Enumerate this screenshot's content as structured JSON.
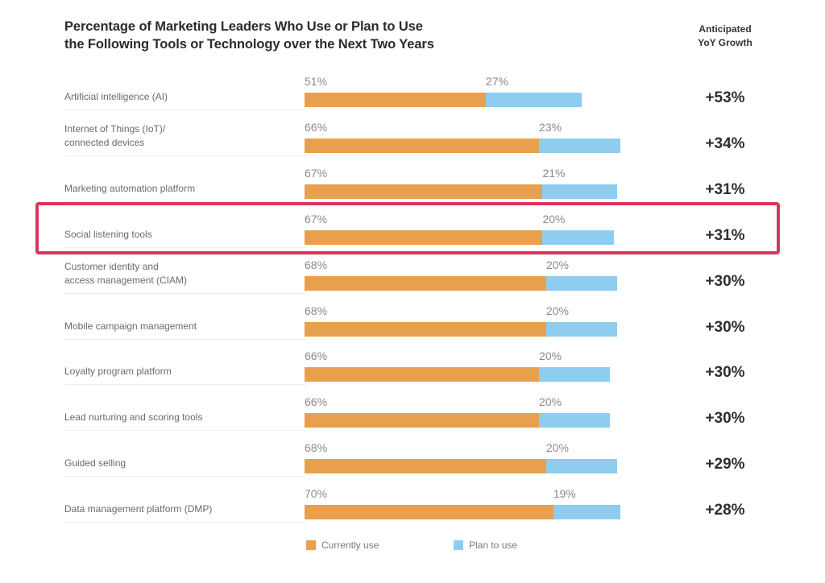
{
  "chart_data": {
    "type": "bar",
    "orientation": "horizontal",
    "stacked": true,
    "title": "Percentage of Marketing Leaders Who Use or Plan to Use the Following Tools or Technology over the Next Two Years",
    "title_lines": [
      "Percentage of Marketing Leaders Who Use or Plan to Use",
      "the Following Tools or Technology over the Next Two Years"
    ],
    "growth_header_lines": [
      "Anticipated",
      "YoY Growth"
    ],
    "categories": [
      [
        "Artificial intelligence (AI)"
      ],
      [
        "Internet of Things (IoT)/",
        "connected devices"
      ],
      [
        "Marketing automation platform"
      ],
      [
        "Social listening tools"
      ],
      [
        "Customer identity and",
        "access management (CIAM)"
      ],
      [
        "Mobile campaign management"
      ],
      [
        "Loyalty program platform"
      ],
      [
        "Lead nurturing and scoring tools"
      ],
      [
        "Guided selling"
      ],
      [
        "Data management platform (DMP)"
      ]
    ],
    "series": [
      {
        "name": "Currently use",
        "color": "#e8a04e",
        "values": [
          51,
          66,
          67,
          67,
          68,
          68,
          66,
          66,
          68,
          70
        ]
      },
      {
        "name": "Plan to use",
        "color": "#8ecdef",
        "values": [
          27,
          23,
          21,
          20,
          20,
          20,
          20,
          20,
          20,
          19
        ]
      }
    ],
    "growth": [
      "+53%",
      "+34%",
      "+31%",
      "+31%",
      "+30%",
      "+30%",
      "+30%",
      "+30%",
      "+29%",
      "+28%"
    ],
    "highlighted_category_index": 3,
    "highlight_color": "#d9365e",
    "value_suffix": "%",
    "xlim": [
      0,
      100
    ],
    "grid": false,
    "legend": "bottom-center"
  }
}
